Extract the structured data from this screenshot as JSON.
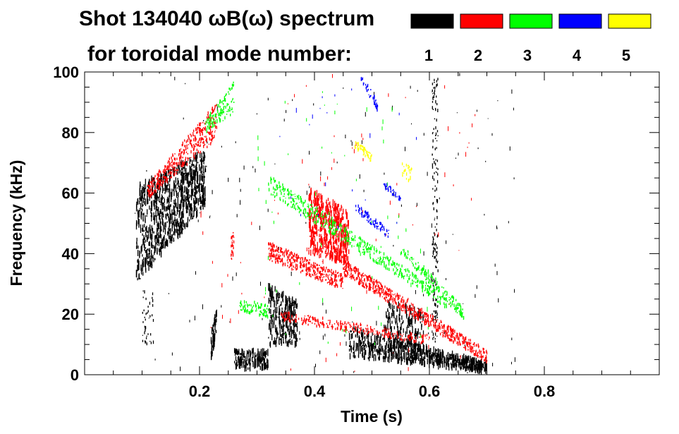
{
  "chart_data": {
    "type": "scatter",
    "title_line1": "Shot 134040 ωB(ω) spectrum",
    "title_line2": "for toroidal mode number:",
    "xlabel": "Time (s)",
    "ylabel": "Frequency (kHz)",
    "xlim": [
      0.0,
      1.0
    ],
    "ylim": [
      0,
      100
    ],
    "x_ticks": [
      0.2,
      0.4,
      0.6,
      0.8
    ],
    "x_tick_labels": [
      "0.2",
      "0.4",
      "0.6",
      "0.8"
    ],
    "y_ticks": [
      0,
      20,
      40,
      60,
      80,
      100
    ],
    "y_tick_labels": [
      "0",
      "20",
      "40",
      "60",
      "80",
      "100"
    ],
    "legend": [
      {
        "label": "1",
        "color": "#000000"
      },
      {
        "label": "2",
        "color": "#ff0000"
      },
      {
        "label": "3",
        "color": "#00ff00"
      },
      {
        "label": "4",
        "color": "#0000ff"
      },
      {
        "label": "5",
        "color": "#ffff00"
      }
    ],
    "series": [
      {
        "name": "1",
        "color": "#000000",
        "features": [
          {
            "kind": "blob",
            "t": [
              0.09,
              0.21
            ],
            "f_lo": [
              30,
              56
            ],
            "f_hi": [
              62,
              74
            ],
            "n": 900
          },
          {
            "kind": "blob",
            "t": [
              0.26,
              0.32
            ],
            "f_lo": [
              2,
              2
            ],
            "f_hi": [
              8,
              8
            ],
            "n": 150
          },
          {
            "kind": "blob",
            "t": [
              0.32,
              0.37
            ],
            "f_lo": [
              10,
              10
            ],
            "f_hi": [
              30,
              24
            ],
            "n": 260
          },
          {
            "kind": "blob",
            "t": [
              0.46,
              0.7
            ],
            "f_lo": [
              6,
              1
            ],
            "f_hi": [
              16,
              4
            ],
            "n": 650
          },
          {
            "kind": "blob",
            "t": [
              0.52,
              0.59
            ],
            "f_lo": [
              5,
              5
            ],
            "f_hi": [
              24,
              22
            ],
            "n": 200
          },
          {
            "kind": "blob",
            "t": [
              0.22,
              0.23
            ],
            "f_lo": [
              5,
              14
            ],
            "f_hi": [
              14,
              22
            ],
            "n": 60
          },
          {
            "kind": "line",
            "t": [
              0.605,
              0.615
            ],
            "f_lo": [
              10,
              10
            ],
            "f_hi": [
              98,
              98
            ],
            "n": 160
          },
          {
            "kind": "line",
            "t": [
              0.1,
              0.12
            ],
            "f_lo": [
              10,
              10
            ],
            "f_hi": [
              28,
              28
            ],
            "n": 40
          },
          {
            "kind": "scatter",
            "t": [
              0.08,
              0.75
            ],
            "f_lo": [
              0,
              0
            ],
            "f_hi": [
              100,
              100
            ],
            "n": 150
          }
        ]
      },
      {
        "name": "2",
        "color": "#ff0000",
        "features": [
          {
            "kind": "line",
            "t": [
              0.11,
              0.23
            ],
            "f_lo": [
              58,
              78
            ],
            "f_hi": [
              63,
              90
            ],
            "n": 420
          },
          {
            "kind": "line",
            "t": [
              0.32,
              0.45
            ],
            "f_lo": [
              38,
              28
            ],
            "f_hi": [
              44,
              33
            ],
            "n": 380
          },
          {
            "kind": "blob",
            "t": [
              0.39,
              0.46
            ],
            "f_lo": [
              40,
              36
            ],
            "f_hi": [
              62,
              54
            ],
            "n": 500
          },
          {
            "kind": "line",
            "t": [
              0.45,
              0.7
            ],
            "f_lo": [
              33,
              4
            ],
            "f_hi": [
              38,
              8
            ],
            "n": 650
          },
          {
            "kind": "line",
            "t": [
              0.34,
              0.6
            ],
            "f_lo": [
              18,
              10
            ],
            "f_hi": [
              21,
              13
            ],
            "n": 260
          },
          {
            "kind": "line",
            "t": [
              0.255,
              0.26
            ],
            "f_lo": [
              38,
              38
            ],
            "f_hi": [
              47,
              47
            ],
            "n": 30
          },
          {
            "kind": "scatter",
            "t": [
              0.18,
              0.7
            ],
            "f_lo": [
              0,
              0
            ],
            "f_hi": [
              100,
              100
            ],
            "n": 80
          }
        ]
      },
      {
        "name": "3",
        "color": "#00ff00",
        "features": [
          {
            "kind": "line",
            "t": [
              0.21,
              0.26
            ],
            "f_lo": [
              80,
              86
            ],
            "f_hi": [
              84,
              97
            ],
            "n": 120
          },
          {
            "kind": "line",
            "t": [
              0.32,
              0.63
            ],
            "f_lo": [
              60,
              22
            ],
            "f_hi": [
              66,
              26
            ],
            "n": 520
          },
          {
            "kind": "line",
            "t": [
              0.27,
              0.32
            ],
            "f_lo": [
              21,
              19
            ],
            "f_hi": [
              25,
              23
            ],
            "n": 90
          },
          {
            "kind": "line",
            "t": [
              0.55,
              0.66
            ],
            "f_lo": [
              40,
              18
            ],
            "f_hi": [
              44,
              22
            ],
            "n": 140
          },
          {
            "kind": "scatter",
            "t": [
              0.3,
              0.6
            ],
            "f_lo": [
              10,
              10
            ],
            "f_hi": [
              100,
              100
            ],
            "n": 60
          }
        ]
      },
      {
        "name": "4",
        "color": "#0000ff",
        "features": [
          {
            "kind": "line",
            "t": [
              0.48,
              0.51
            ],
            "f_lo": [
              97,
              87
            ],
            "f_hi": [
              99,
              91
            ],
            "n": 40
          },
          {
            "kind": "line",
            "t": [
              0.47,
              0.53
            ],
            "f_lo": [
              54,
              45
            ],
            "f_hi": [
              57,
              48
            ],
            "n": 80
          },
          {
            "kind": "line",
            "t": [
              0.52,
              0.55
            ],
            "f_lo": [
              62,
              57
            ],
            "f_hi": [
              64,
              59
            ],
            "n": 40
          },
          {
            "kind": "scatter",
            "t": [
              0.33,
              0.58
            ],
            "f_lo": [
              45,
              45
            ],
            "f_hi": [
              95,
              95
            ],
            "n": 20
          }
        ]
      },
      {
        "name": "5",
        "color": "#ffff00",
        "features": [
          {
            "kind": "line",
            "t": [
              0.47,
              0.5
            ],
            "f_lo": [
              75,
              70
            ],
            "f_hi": [
              78,
              73
            ],
            "n": 50
          },
          {
            "kind": "line",
            "t": [
              0.55,
              0.57
            ],
            "f_lo": [
              64,
              64
            ],
            "f_hi": [
              70,
              70
            ],
            "n": 25
          }
        ]
      }
    ]
  }
}
